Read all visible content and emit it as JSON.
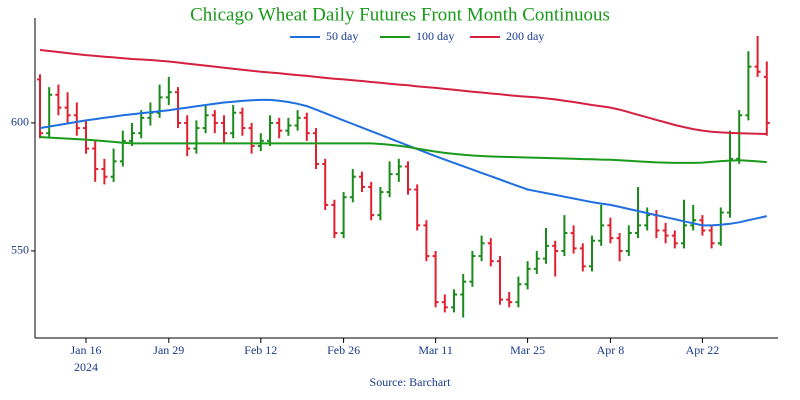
{
  "chart_data": {
    "type": "ohlc",
    "title": "Chicago Wheat Daily Futures Front Month Continuous",
    "source": "Source: Barchart",
    "categories": [
      null,
      null,
      null,
      null,
      null,
      "Jan 16",
      null,
      null,
      null,
      null,
      null,
      null,
      null,
      null,
      "Jan 29",
      null,
      null,
      null,
      null,
      null,
      null,
      null,
      null,
      null,
      "Feb 12",
      null,
      null,
      null,
      null,
      null,
      null,
      null,
      null,
      "Feb 26",
      null,
      null,
      null,
      null,
      null,
      null,
      null,
      null,
      null,
      "Mar 11",
      null,
      null,
      null,
      null,
      null,
      null,
      null,
      null,
      null,
      "Mar 25",
      null,
      null,
      null,
      null,
      null,
      null,
      null,
      null,
      "Apr 8",
      null,
      null,
      null,
      null,
      null,
      null,
      null,
      null,
      null,
      "Apr 22",
      null,
      null,
      null,
      null,
      null,
      null,
      null
    ],
    "year_label": "2024",
    "ylim": [
      516,
      641
    ],
    "yticks": [
      550,
      600
    ],
    "up_color": "#1a8a1a",
    "down_color": "#e0202e",
    "ohlc": {
      "open": [
        617,
        596,
        611,
        606,
        603,
        598,
        590,
        582,
        579,
        585,
        593,
        596,
        602,
        604,
        610,
        612,
        600,
        590,
        598,
        603,
        600,
        596,
        604,
        598,
        591,
        593,
        600,
        597,
        599,
        602,
        596,
        584,
        568,
        557,
        571,
        579,
        575,
        564,
        573,
        580,
        583,
        574,
        560,
        548,
        530,
        528,
        533,
        538,
        548,
        553,
        546,
        531,
        530,
        537,
        543,
        547,
        552,
        550,
        557,
        551,
        544,
        554,
        560,
        555,
        550,
        557,
        560,
        564,
        558,
        556,
        553,
        560,
        562,
        558,
        553,
        565,
        586,
        603,
        622,
        618
      ],
      "high": [
        619,
        614,
        615,
        612,
        608,
        601,
        593,
        586,
        590,
        597,
        600,
        605,
        608,
        615,
        618,
        614,
        603,
        601,
        607,
        605,
        603,
        607,
        606,
        600,
        596,
        603,
        602,
        602,
        605,
        604,
        598,
        586,
        570,
        573,
        582,
        581,
        577,
        575,
        585,
        586,
        585,
        576,
        562,
        550,
        533,
        535,
        541,
        550,
        556,
        555,
        548,
        534,
        540,
        546,
        550,
        559,
        554,
        564,
        560,
        553,
        556,
        568,
        563,
        557,
        560,
        575,
        567,
        566,
        561,
        558,
        570,
        568,
        564,
        560,
        567,
        597,
        605,
        628,
        634,
        624
      ],
      "low": [
        594,
        594,
        603,
        600,
        595,
        588,
        577,
        576,
        577,
        583,
        591,
        594,
        599,
        602,
        607,
        598,
        587,
        588,
        596,
        596,
        592,
        594,
        595,
        588,
        589,
        591,
        594,
        595,
        597,
        593,
        582,
        566,
        555,
        555,
        569,
        573,
        562,
        562,
        571,
        577,
        572,
        558,
        546,
        528,
        526,
        526,
        524,
        536,
        546,
        544,
        529,
        528,
        528,
        535,
        541,
        545,
        540,
        548,
        549,
        542,
        542,
        552,
        553,
        546,
        548,
        555,
        558,
        555,
        553,
        551,
        551,
        558,
        556,
        551,
        552,
        563,
        584,
        601,
        618,
        595
      ],
      "close": [
        596,
        611,
        606,
        603,
        598,
        590,
        582,
        579,
        585,
        593,
        596,
        602,
        604,
        610,
        612,
        600,
        590,
        598,
        603,
        600,
        596,
        604,
        598,
        591,
        593,
        600,
        597,
        599,
        602,
        596,
        584,
        568,
        557,
        571,
        579,
        575,
        564,
        573,
        580,
        583,
        574,
        560,
        548,
        530,
        528,
        533,
        538,
        548,
        553,
        546,
        531,
        530,
        537,
        543,
        547,
        552,
        550,
        557,
        551,
        544,
        554,
        560,
        555,
        550,
        557,
        560,
        564,
        558,
        556,
        553,
        560,
        562,
        558,
        553,
        565,
        586,
        603,
        622,
        620,
        600
      ]
    },
    "series": [
      {
        "name": "50 day",
        "color": "#1f6fe0",
        "values": [
          598,
          598.6,
          599.2,
          599.8,
          600.4,
          601,
          601.5,
          602,
          602.5,
          603,
          603.4,
          603.8,
          604.2,
          604.6,
          605,
          605.5,
          606,
          606.5,
          607,
          607.5,
          608,
          608.3,
          608.6,
          608.9,
          609,
          609,
          608.7,
          608.2,
          607.5,
          606.6,
          605.2,
          603.8,
          602.4,
          601,
          599.6,
          598.2,
          596.8,
          595.4,
          594,
          592.6,
          591.2,
          589.8,
          588.4,
          587,
          585.7,
          584.4,
          583.1,
          581.8,
          580.5,
          579.2,
          577.9,
          576.6,
          575.3,
          574,
          573.3,
          572.6,
          571.9,
          571.2,
          570.5,
          569.8,
          569.1,
          568.5,
          568,
          567.2,
          566.4,
          565.6,
          564.8,
          564,
          563.2,
          562.4,
          561.6,
          560.8,
          560,
          560,
          560.2,
          560.6,
          561.2,
          562,
          562.8,
          563.6
        ]
      },
      {
        "name": "100 day",
        "color": "#1a9a1a",
        "values": [
          594.5,
          594.3,
          594.1,
          593.9,
          593.7,
          593.5,
          593.2,
          592.9,
          592.6,
          592.3,
          592,
          592,
          592,
          592,
          592,
          592,
          592,
          592,
          592,
          592,
          592,
          592,
          592,
          592,
          592,
          592,
          592,
          592,
          592,
          592,
          592,
          592,
          592,
          592,
          592,
          592,
          592,
          591.8,
          591.5,
          591.1,
          590.6,
          590,
          589.4,
          588.8,
          588.3,
          587.9,
          587.6,
          587.3,
          587.1,
          586.9,
          586.8,
          586.7,
          586.6,
          586.5,
          586.4,
          586.3,
          586.2,
          586.1,
          586,
          585.9,
          585.8,
          585.7,
          585.6,
          585.4,
          585.2,
          585,
          584.8,
          584.6,
          584.5,
          584.4,
          584.4,
          584.4,
          584.5,
          584.8,
          585.1,
          585.3,
          585.4,
          585.2,
          585,
          584.7
        ]
      },
      {
        "name": "200 day",
        "color": "#d62040",
        "values": [
          628.5,
          628.1,
          627.7,
          627.3,
          626.9,
          626.5,
          626.2,
          625.9,
          625.6,
          625.3,
          625,
          624.8,
          624.6,
          624.3,
          624,
          623.6,
          623.2,
          622.8,
          622.4,
          622,
          621.6,
          621.2,
          620.8,
          620.4,
          620,
          619.7,
          619.4,
          619,
          618.7,
          618.4,
          618,
          617.6,
          617.3,
          617,
          616.7,
          616.4,
          616,
          615.7,
          615.3,
          615,
          614.7,
          614.3,
          614,
          613.7,
          613.3,
          613,
          612.6,
          612.2,
          611.9,
          611.5,
          611.2,
          610.8,
          610.5,
          610.2,
          610,
          609.6,
          609.2,
          608.7,
          608.2,
          607.6,
          607,
          606.5,
          606,
          605.2,
          604.2,
          603.2,
          602.2,
          601.2,
          600.2,
          599.2,
          598.4,
          597.6,
          597,
          596.6,
          596.3,
          596.1,
          596,
          595.9,
          595.8,
          595.7
        ]
      }
    ]
  }
}
